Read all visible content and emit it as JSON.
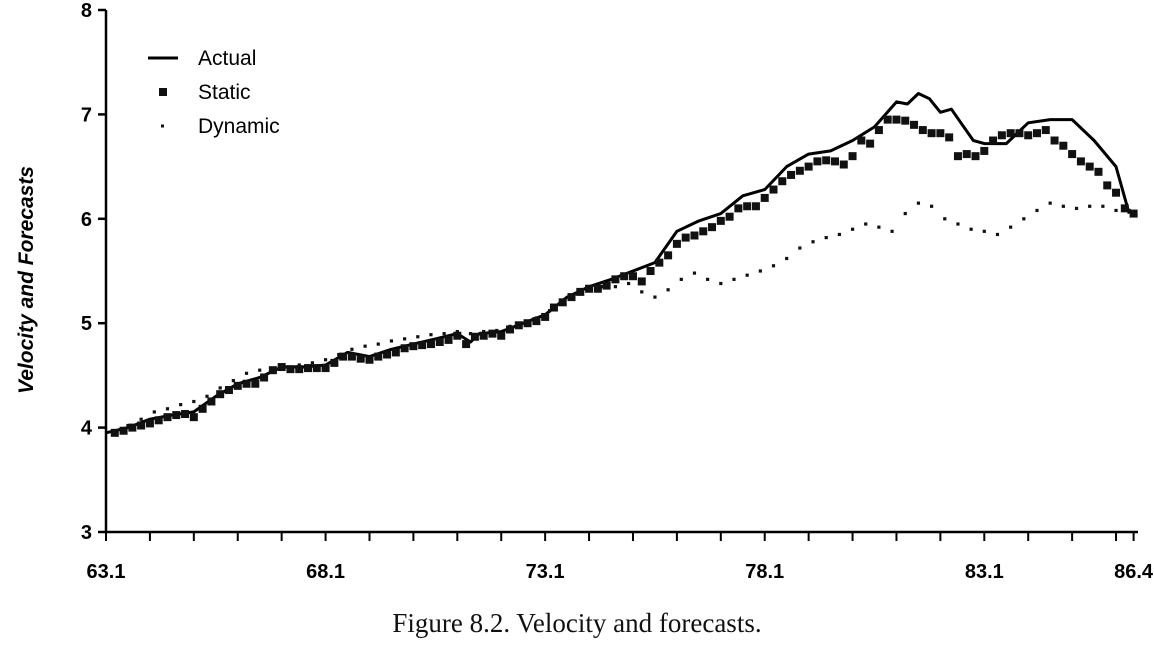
{
  "caption": "Figure 8.2.  Velocity and forecasts.",
  "chart_data": {
    "type": "line",
    "title": "",
    "xlabel": "",
    "ylabel": "Velocity and Forecasts",
    "xlim": [
      63.0,
      86.5
    ],
    "ylim": [
      3,
      8
    ],
    "x_tick_labels": [
      "63.1",
      "68.1",
      "73.1",
      "78.1",
      "83.1",
      "86.4"
    ],
    "x_tick_values": [
      63.0,
      68.0,
      73.0,
      78.0,
      83.0,
      86.4
    ],
    "y_ticks": [
      3,
      4,
      5,
      6,
      7,
      8
    ],
    "grid": false,
    "legend": {
      "placement": "top-left",
      "entries": [
        "Actual",
        "Static",
        "Dynamic"
      ]
    },
    "series": [
      {
        "name": "Actual",
        "style": "solid-line",
        "x": [
          63.0,
          63.5,
          64.0,
          64.5,
          65.0,
          65.5,
          66.0,
          66.5,
          67.0,
          67.5,
          68.0,
          68.5,
          69.0,
          69.5,
          70.0,
          70.5,
          71.0,
          71.3,
          71.5,
          72.0,
          72.5,
          73.0,
          73.5,
          74.0,
          74.5,
          75.0,
          75.5,
          76.0,
          76.5,
          77.0,
          77.5,
          78.0,
          78.5,
          79.0,
          79.5,
          80.0,
          80.5,
          81.0,
          81.25,
          81.5,
          81.75,
          82.0,
          82.25,
          82.5,
          82.75,
          83.0,
          83.5,
          84.0,
          84.5,
          85.0,
          85.5,
          86.0,
          86.3
        ],
        "y": [
          3.95,
          4.0,
          4.08,
          4.12,
          4.15,
          4.3,
          4.42,
          4.48,
          4.58,
          4.58,
          4.6,
          4.72,
          4.68,
          4.75,
          4.8,
          4.85,
          4.9,
          4.82,
          4.9,
          4.92,
          5.0,
          5.08,
          5.25,
          5.35,
          5.42,
          5.5,
          5.58,
          5.88,
          5.98,
          6.05,
          6.22,
          6.28,
          6.5,
          6.62,
          6.65,
          6.75,
          6.88,
          7.12,
          7.1,
          7.2,
          7.15,
          7.02,
          7.05,
          6.9,
          6.75,
          6.72,
          6.72,
          6.92,
          6.95,
          6.95,
          6.75,
          6.5,
          6.05
        ]
      },
      {
        "name": "Static",
        "style": "square-markers",
        "x": [
          63.2,
          63.4,
          63.6,
          63.8,
          64.0,
          64.2,
          64.4,
          64.6,
          64.8,
          65.0,
          65.2,
          65.4,
          65.6,
          65.8,
          66.0,
          66.2,
          66.4,
          66.6,
          66.8,
          67.0,
          67.2,
          67.4,
          67.6,
          67.8,
          68.0,
          68.2,
          68.4,
          68.6,
          68.8,
          69.0,
          69.2,
          69.4,
          69.6,
          69.8,
          70.0,
          70.2,
          70.4,
          70.6,
          70.8,
          71.0,
          71.2,
          71.4,
          71.6,
          71.8,
          72.0,
          72.2,
          72.4,
          72.6,
          72.8,
          73.0,
          73.2,
          73.4,
          73.6,
          73.8,
          74.0,
          74.2,
          74.4,
          74.6,
          74.8,
          75.0,
          75.2,
          75.4,
          75.6,
          75.8,
          76.0,
          76.2,
          76.4,
          76.6,
          76.8,
          77.0,
          77.2,
          77.4,
          77.6,
          77.8,
          78.0,
          78.2,
          78.4,
          78.6,
          78.8,
          79.0,
          79.2,
          79.4,
          79.6,
          79.8,
          80.0,
          80.2,
          80.4,
          80.6,
          80.8,
          81.0,
          81.2,
          81.4,
          81.6,
          81.8,
          82.0,
          82.2,
          82.4,
          82.6,
          82.8,
          83.0,
          83.2,
          83.4,
          83.6,
          83.8,
          84.0,
          84.2,
          84.4,
          84.6,
          84.8,
          85.0,
          85.2,
          85.4,
          85.6,
          85.8,
          86.0,
          86.2,
          86.4
        ],
        "y": [
          3.95,
          3.97,
          4.0,
          4.02,
          4.04,
          4.07,
          4.1,
          4.12,
          4.13,
          4.1,
          4.18,
          4.25,
          4.32,
          4.36,
          4.4,
          4.42,
          4.42,
          4.48,
          4.55,
          4.58,
          4.56,
          4.56,
          4.57,
          4.57,
          4.57,
          4.62,
          4.68,
          4.68,
          4.66,
          4.65,
          4.68,
          4.7,
          4.72,
          4.76,
          4.78,
          4.79,
          4.8,
          4.82,
          4.84,
          4.88,
          4.8,
          4.87,
          4.88,
          4.9,
          4.88,
          4.94,
          4.98,
          5.0,
          5.02,
          5.06,
          5.15,
          5.2,
          5.25,
          5.3,
          5.33,
          5.33,
          5.36,
          5.42,
          5.45,
          5.45,
          5.4,
          5.5,
          5.58,
          5.65,
          5.76,
          5.82,
          5.84,
          5.88,
          5.92,
          5.98,
          6.02,
          6.1,
          6.12,
          6.12,
          6.2,
          6.28,
          6.36,
          6.42,
          6.46,
          6.5,
          6.55,
          6.56,
          6.55,
          6.52,
          6.6,
          6.75,
          6.72,
          6.85,
          6.95,
          6.95,
          6.94,
          6.9,
          6.85,
          6.82,
          6.82,
          6.78,
          6.6,
          6.62,
          6.6,
          6.65,
          6.75,
          6.8,
          6.82,
          6.82,
          6.8,
          6.82,
          6.85,
          6.75,
          6.7,
          6.62,
          6.55,
          6.5,
          6.45,
          6.32,
          6.25,
          6.1,
          6.05
        ]
      },
      {
        "name": "Dynamic",
        "style": "dots",
        "x": [
          63.2,
          63.5,
          63.8,
          64.1,
          64.4,
          64.7,
          65.0,
          65.3,
          65.6,
          65.9,
          66.2,
          66.5,
          66.8,
          67.1,
          67.4,
          67.7,
          68.0,
          68.3,
          68.6,
          68.9,
          69.2,
          69.5,
          69.8,
          70.1,
          70.4,
          70.7,
          71.0,
          71.3,
          71.6,
          71.9,
          72.2,
          72.5,
          72.8,
          73.1,
          73.4,
          73.7,
          74.0,
          74.3,
          74.6,
          74.9,
          75.2,
          75.5,
          75.8,
          76.1,
          76.4,
          76.7,
          77.0,
          77.3,
          77.6,
          77.9,
          78.2,
          78.5,
          78.8,
          79.1,
          79.4,
          79.7,
          80.0,
          80.3,
          80.6,
          80.9,
          81.2,
          81.5,
          81.8,
          82.1,
          82.4,
          82.7,
          83.0,
          83.3,
          83.6,
          83.9,
          84.2,
          84.5,
          84.8,
          85.1,
          85.4,
          85.7,
          86.0,
          86.3
        ],
        "y": [
          3.96,
          4.02,
          4.08,
          4.15,
          4.18,
          4.22,
          4.25,
          4.3,
          4.38,
          4.45,
          4.52,
          4.55,
          4.57,
          4.58,
          4.6,
          4.62,
          4.65,
          4.7,
          4.75,
          4.78,
          4.8,
          4.83,
          4.85,
          4.87,
          4.89,
          4.9,
          4.92,
          4.9,
          4.92,
          4.93,
          4.97,
          5.0,
          5.05,
          5.12,
          5.2,
          5.28,
          5.32,
          5.35,
          5.35,
          5.38,
          5.3,
          5.25,
          5.32,
          5.42,
          5.48,
          5.42,
          5.38,
          5.42,
          5.46,
          5.5,
          5.55,
          5.62,
          5.72,
          5.78,
          5.82,
          5.85,
          5.9,
          5.95,
          5.92,
          5.88,
          6.05,
          6.15,
          6.12,
          6.0,
          5.95,
          5.9,
          5.88,
          5.85,
          5.92,
          6.0,
          6.08,
          6.15,
          6.12,
          6.1,
          6.12,
          6.12,
          6.08,
          6.08
        ]
      }
    ]
  }
}
